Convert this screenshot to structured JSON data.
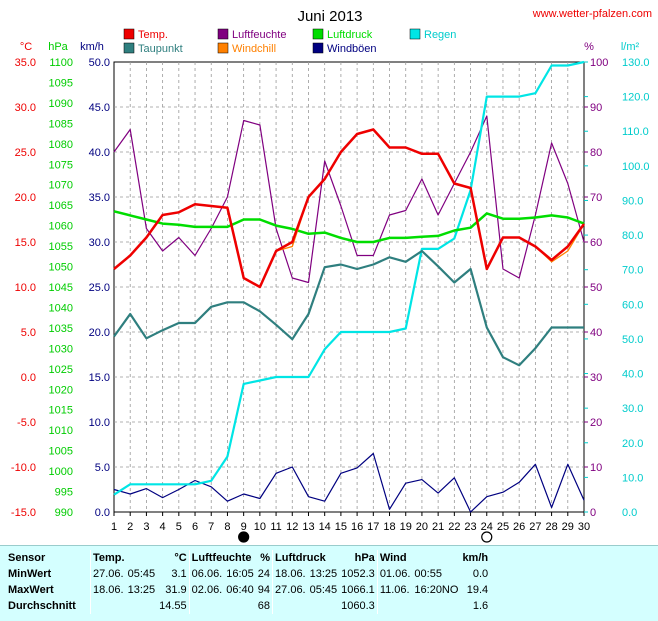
{
  "header": {
    "title": "Juni 2013",
    "site": "www.wetter-pfalzen.com"
  },
  "legend": [
    {
      "label": "Temp.",
      "color": "#ee0000"
    },
    {
      "label": "Taupunkt",
      "color": "#2f7f7f"
    },
    {
      "label": "Luftfeuchte",
      "color": "#800080"
    },
    {
      "label": "Windchill",
      "color": "#ff8000"
    },
    {
      "label": "Luftdruck",
      "color": "#00dd00"
    },
    {
      "label": "Windböen",
      "color": "#000080"
    },
    {
      "label": "Regen",
      "color": "#00e5e5"
    }
  ],
  "axis_units": {
    "temp": "°C",
    "press": "hPa",
    "wind": "km/h",
    "hum": "%",
    "rain": "l/m²"
  },
  "chart_data": {
    "type": "line",
    "x": [
      1,
      2,
      3,
      4,
      5,
      6,
      7,
      8,
      9,
      10,
      11,
      12,
      13,
      14,
      15,
      16,
      17,
      18,
      19,
      20,
      21,
      22,
      23,
      24,
      25,
      26,
      27,
      28,
      29,
      30
    ],
    "axes": {
      "temp": {
        "range": [
          -15,
          35
        ],
        "step": 5,
        "color": "#ee0000"
      },
      "press": {
        "range": [
          990,
          1100
        ],
        "step": 5,
        "color": "#00cc00"
      },
      "wind": {
        "range": [
          0,
          50
        ],
        "step": 5,
        "color": "#000080"
      },
      "hum": {
        "range": [
          0,
          100
        ],
        "step": 10,
        "color": "#800080"
      },
      "rain": {
        "range": [
          0,
          130
        ],
        "step": 10,
        "color": "#00cccc"
      }
    },
    "grid": true,
    "moon_markers": [
      {
        "day": 9,
        "phase": "new"
      },
      {
        "day": 24,
        "phase": "full"
      }
    ],
    "series": [
      {
        "name": "Temp.",
        "axis": "temp",
        "color": "#ee0000",
        "values": [
          12.0,
          13.5,
          15.5,
          18.0,
          18.3,
          19.2,
          19.0,
          18.8,
          11.0,
          10.0,
          14.0,
          15.0,
          20.0,
          22.0,
          25.0,
          27.0,
          27.5,
          25.5,
          25.5,
          24.8,
          24.8,
          21.5,
          21.0,
          12.0,
          15.5,
          15.5,
          14.5,
          13.0,
          14.5,
          17.0
        ]
      },
      {
        "name": "Windchill",
        "axis": "temp",
        "color": "#ff8000",
        "values": [
          12.0,
          13.5,
          15.5,
          18.0,
          18.3,
          19.2,
          19.0,
          18.8,
          11.0,
          10.0,
          14.0,
          14.5,
          20.0,
          22.0,
          25.0,
          27.0,
          27.5,
          25.5,
          25.5,
          24.8,
          24.8,
          21.5,
          21.0,
          12.0,
          15.5,
          15.5,
          14.5,
          12.8,
          14.0,
          17.0
        ]
      },
      {
        "name": "Taupunkt",
        "axis": "wind",
        "color": "#2f7f7f",
        "values": [
          19.5,
          22.0,
          19.3,
          20.2,
          21.0,
          21.0,
          22.8,
          23.3,
          23.3,
          22.3,
          20.8,
          19.2,
          22.0,
          27.2,
          27.5,
          27.0,
          27.5,
          28.3,
          27.8,
          29.0,
          27.3,
          25.5,
          27.0,
          20.5,
          17.2,
          16.3,
          18.2,
          20.5,
          20.5,
          20.5
        ]
      },
      {
        "name": "Luftfeuchte",
        "axis": "hum",
        "color": "#800080",
        "values": [
          80,
          85,
          63,
          58,
          61,
          57,
          63,
          70,
          87,
          86,
          63,
          52,
          51,
          78,
          68,
          57,
          57,
          66,
          67,
          74,
          66,
          73,
          80,
          88,
          54,
          52,
          66,
          82,
          73,
          60
        ]
      },
      {
        "name": "Luftdruck",
        "axis": "press",
        "color": "#00dd00",
        "values": [
          1063.5,
          1062.5,
          1061.5,
          1060.5,
          1060.2,
          1059.7,
          1059.7,
          1059.7,
          1061.5,
          1061.5,
          1060.0,
          1059.2,
          1058.0,
          1058.3,
          1057.0,
          1056.0,
          1056.0,
          1057.0,
          1057.0,
          1057.3,
          1057.5,
          1058.8,
          1059.5,
          1063.0,
          1061.7,
          1061.7,
          1062.0,
          1062.5,
          1062.0,
          1060.5
        ]
      },
      {
        "name": "Windböen",
        "axis": "wind",
        "color": "#000080",
        "values": [
          2.5,
          2.0,
          2.6,
          1.6,
          2.5,
          3.5,
          2.8,
          1.2,
          2.0,
          1.5,
          4.3,
          5.0,
          1.7,
          1.2,
          4.3,
          4.9,
          6.5,
          0.3,
          3.2,
          3.6,
          2.1,
          3.8,
          0.0,
          1.7,
          2.2,
          3.3,
          5.3,
          0.5,
          5.3,
          1.3
        ]
      },
      {
        "name": "Regen",
        "axis": "rain",
        "color": "#00e5e5",
        "values": [
          5,
          8,
          8,
          8,
          8,
          8,
          9,
          16,
          37,
          38,
          39,
          39,
          39,
          47,
          52,
          52,
          52,
          52,
          53,
          76,
          76,
          79,
          93,
          120,
          120,
          120,
          121,
          129,
          129,
          130
        ]
      }
    ]
  },
  "stats": {
    "columns": [
      "Sensor",
      "Temp.",
      "°C",
      "Luftfeuchte",
      "%",
      "Luftdruck",
      "hPa",
      "Wind",
      "km/h"
    ],
    "rows": [
      {
        "label": "MinWert",
        "cells": [
          "27.06.",
          "05:45",
          "3.1",
          "06.06.",
          "16:05",
          "24",
          "18.06.",
          "13:25",
          "1052.3",
          "01.06.",
          "00:55",
          "0.0"
        ]
      },
      {
        "label": "MaxWert",
        "cells": [
          "18.06.",
          "13:25",
          "31.9",
          "02.06.",
          "06:40",
          "94",
          "27.06.",
          "05:45",
          "1066.1",
          "11.06.",
          "16:20NO",
          "19.4"
        ]
      },
      {
        "label": "Durchschnitt",
        "cells": [
          "",
          "",
          "14.55",
          "",
          "",
          "68",
          "",
          "",
          "1060.3",
          "",
          "",
          "1.6"
        ]
      }
    ]
  }
}
